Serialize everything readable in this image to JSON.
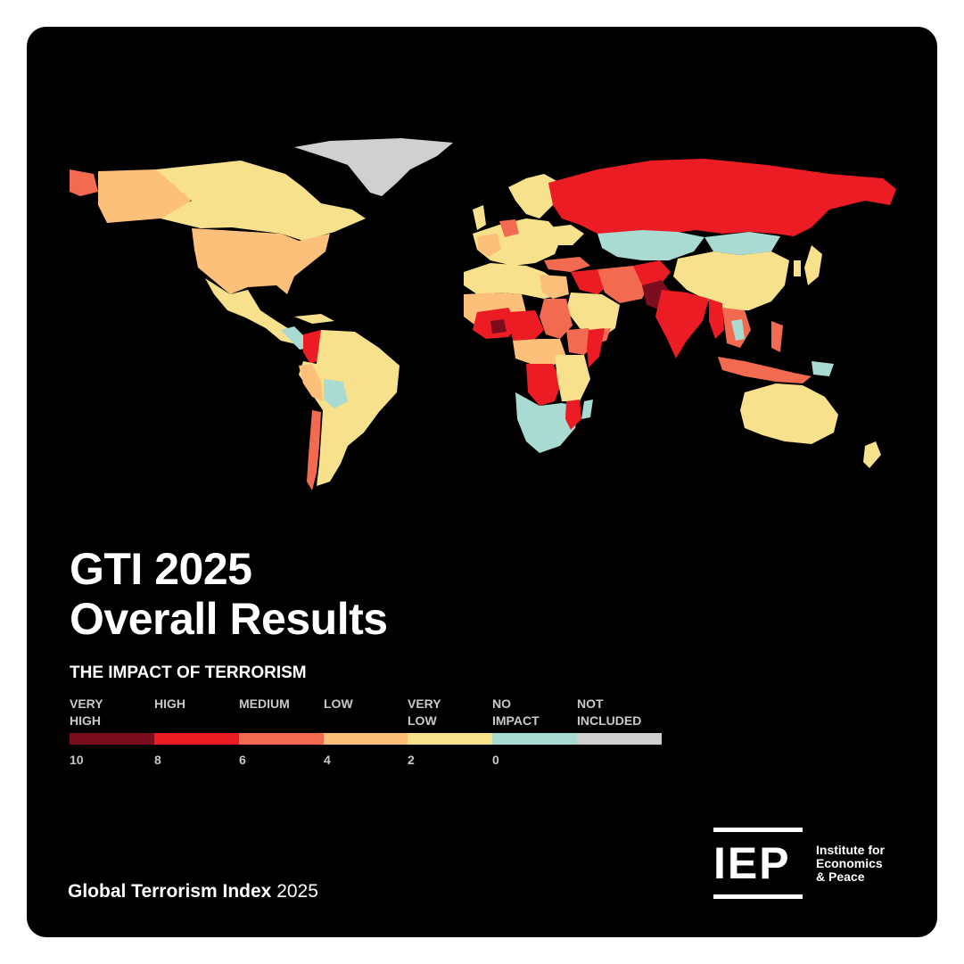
{
  "title": {
    "line1": "GTI 2025",
    "line2": "Overall Results"
  },
  "legend": {
    "heading": "THE IMPACT OF TERRORISM",
    "categories": [
      {
        "label": "VERY\nHIGH",
        "color": "#7a0e1f"
      },
      {
        "label": "HIGH",
        "color": "#ec1c24"
      },
      {
        "label": "MEDIUM",
        "color": "#f26a4f"
      },
      {
        "label": "LOW",
        "color": "#fdc07a"
      },
      {
        "label": "VERY\nLOW",
        "color": "#f8e18d"
      },
      {
        "label": "NO\nIMPACT",
        "color": "#a9dbd2"
      },
      {
        "label": "NOT\nINCLUDED",
        "color": "#d0d0d0"
      }
    ],
    "ticks": [
      "10",
      "8",
      "6",
      "4",
      "2",
      "0"
    ]
  },
  "footer": {
    "bold": "Global Terrorism Index",
    "year": "2025"
  },
  "logo": {
    "mark": "IEP",
    "org": "Institute for\nEconomics\n& Peace"
  },
  "map_colors": {
    "background": "#000000",
    "very_high": "#7a0e1f",
    "high": "#ec1c24",
    "medium": "#f26a4f",
    "low": "#fdc07a",
    "very_low": "#f8e18d",
    "no_impact": "#a9dbd2",
    "not_included": "#d0d0d0"
  }
}
